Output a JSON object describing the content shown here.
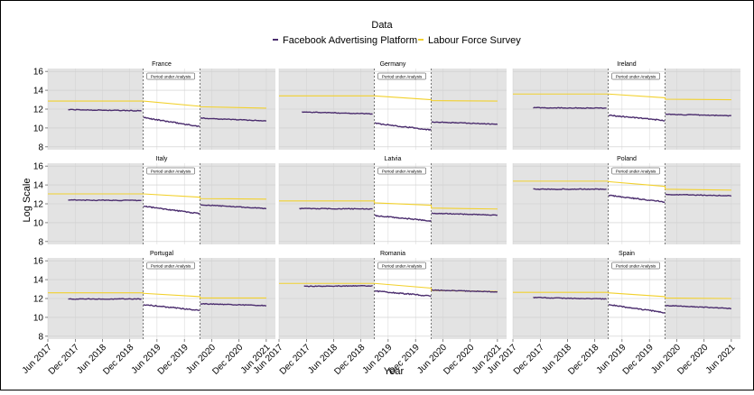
{
  "chart_data": {
    "type": "line",
    "legend": {
      "title": "Data",
      "placement": "top-center",
      "entries": [
        {
          "name": "Facebook Advertising Platform",
          "color": "#4b2d6e"
        },
        {
          "name": "Labour Force Survey",
          "color": "#f2d12e"
        }
      ]
    },
    "xlabel": "Year",
    "ylabel": "Log Scale",
    "x_ticks": [
      "Jun 2017",
      "Dec 2017",
      "Jun 2018",
      "Dec 2018",
      "Jun 2019",
      "Dec 2019",
      "Jun 2020",
      "Dec 2020",
      "Jun 2021"
    ],
    "y_ticks": [
      8,
      10,
      12,
      14,
      16
    ],
    "ylim": [
      7.7,
      16.3
    ],
    "xlim": [
      "2017-06-01",
      "2021-08-01"
    ],
    "analysis_period": {
      "start": "2019-03-01",
      "end": "2020-03-15",
      "label": "Period under Analysis"
    },
    "grid": true,
    "facets": [
      {
        "title": "France",
        "fb": {
          "pre_start": "2017-10-15",
          "pre": [
            11.95,
            11.82
          ],
          "during": [
            11.1,
            10.15
          ],
          "post": [
            11.05,
            10.75
          ]
        },
        "lfs": {
          "pre": 12.85,
          "during": [
            12.85,
            12.3
          ],
          "post": [
            12.25,
            12.1
          ]
        }
      },
      {
        "title": "Germany",
        "fb": {
          "pre_start": "2017-11-01",
          "pre": [
            11.7,
            11.5
          ],
          "during": [
            10.5,
            9.8
          ],
          "post": [
            10.65,
            10.4
          ]
        },
        "lfs": {
          "pre": 13.4,
          "during": [
            13.4,
            13.0
          ],
          "post": [
            12.9,
            12.85
          ]
        }
      },
      {
        "title": "Ireland",
        "fb": {
          "pre_start": "2017-10-15",
          "pre": [
            12.15,
            12.1
          ],
          "during": [
            11.35,
            10.8
          ],
          "post": [
            11.45,
            11.3
          ]
        },
        "lfs": {
          "pre": 13.6,
          "during": [
            13.6,
            13.2
          ],
          "post": [
            13.05,
            13.0
          ]
        }
      },
      {
        "title": "Italy",
        "fb": {
          "pre_start": "2017-10-15",
          "pre": [
            12.4,
            12.35
          ],
          "during": [
            11.75,
            10.95
          ],
          "post": [
            11.9,
            11.5
          ]
        },
        "lfs": {
          "pre": 13.05,
          "during": [
            13.05,
            12.7
          ],
          "post": [
            12.55,
            12.5
          ]
        }
      },
      {
        "title": "Latvia",
        "fb": {
          "pre_start": "2017-10-15",
          "pre": [
            11.5,
            11.45
          ],
          "during": [
            10.75,
            10.2
          ],
          "post": [
            11.0,
            10.8
          ]
        },
        "lfs": {
          "pre": 12.3,
          "during": [
            12.1,
            11.85
          ],
          "post": [
            11.55,
            11.45
          ]
        }
      },
      {
        "title": "Poland",
        "fb": {
          "pre_start": "2017-10-15",
          "pre": [
            13.55,
            13.55
          ],
          "during": [
            12.9,
            12.2
          ],
          "post": [
            13.0,
            12.85
          ]
        },
        "lfs": {
          "pre": 14.4,
          "during": [
            14.35,
            13.85
          ],
          "post": [
            13.55,
            13.45
          ]
        }
      },
      {
        "title": "Portugal",
        "fb": {
          "pre_start": "2017-10-15",
          "pre": [
            11.95,
            11.95
          ],
          "during": [
            11.35,
            10.75
          ],
          "post": [
            11.45,
            11.25
          ]
        },
        "lfs": {
          "pre": 12.6,
          "during": [
            12.55,
            12.2
          ],
          "post": [
            12.05,
            12.05
          ]
        }
      },
      {
        "title": "Romania",
        "fb": {
          "pre_start": "2017-11-15",
          "pre": [
            13.3,
            13.35
          ],
          "during": [
            12.8,
            12.25
          ],
          "post": [
            12.9,
            12.7
          ]
        },
        "lfs": {
          "pre": 13.6,
          "during": [
            13.6,
            13.1
          ],
          "post": [
            12.85,
            12.75
          ]
        }
      },
      {
        "title": "Spain",
        "fb": {
          "pre_start": "2017-10-15",
          "pre": [
            12.1,
            11.95
          ],
          "during": [
            11.35,
            10.5
          ],
          "post": [
            11.25,
            10.95
          ]
        },
        "lfs": {
          "pre": 12.65,
          "during": [
            12.6,
            12.2
          ],
          "post": [
            12.05,
            12.0
          ]
        }
      }
    ]
  }
}
